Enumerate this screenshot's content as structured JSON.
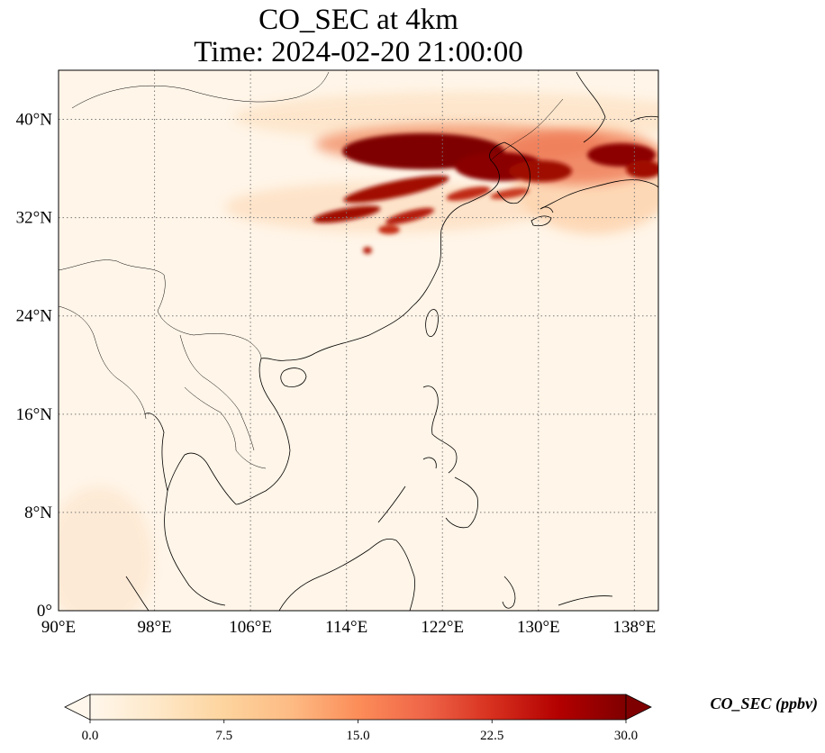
{
  "title": {
    "line1": "CO_SEC at 4km",
    "line2": "Time: 2024-02-20 21:00:00"
  },
  "map": {
    "projection": "PlateCarree",
    "lon_range": [
      90,
      140
    ],
    "lat_range": [
      0,
      44
    ],
    "lon_ticks": [
      {
        "value": 90,
        "label": "90°E"
      },
      {
        "value": 98,
        "label": "98°E"
      },
      {
        "value": 106,
        "label": "106°E"
      },
      {
        "value": 114,
        "label": "114°E"
      },
      {
        "value": 122,
        "label": "122°E"
      },
      {
        "value": 130,
        "label": "130°E"
      },
      {
        "value": 138,
        "label": "138°E"
      }
    ],
    "lat_ticks": [
      {
        "value": 0,
        "label": "0°"
      },
      {
        "value": 8,
        "label": "8°N"
      },
      {
        "value": 16,
        "label": "16°N"
      },
      {
        "value": 24,
        "label": "24°N"
      },
      {
        "value": 32,
        "label": "32°N"
      },
      {
        "value": 40,
        "label": "40°N"
      }
    ],
    "gridlines": "dotted",
    "plume_band": "high CO_SEC concentrations over northern China, Korea and Japan between about 30°N and 42°N"
  },
  "colorbar": {
    "colormap": "OrRd",
    "min": 0.0,
    "max": 30.0,
    "extend": "both",
    "ticks": [
      "0.0",
      "7.5",
      "15.0",
      "22.5",
      "30.0"
    ],
    "label": "CO_SEC (ppbv)",
    "colors": [
      "#fff7ec",
      "#fee8c8",
      "#fdd49e",
      "#fdbb84",
      "#fc8d59",
      "#ef6548",
      "#d7301f",
      "#b30000",
      "#7f0000"
    ]
  }
}
